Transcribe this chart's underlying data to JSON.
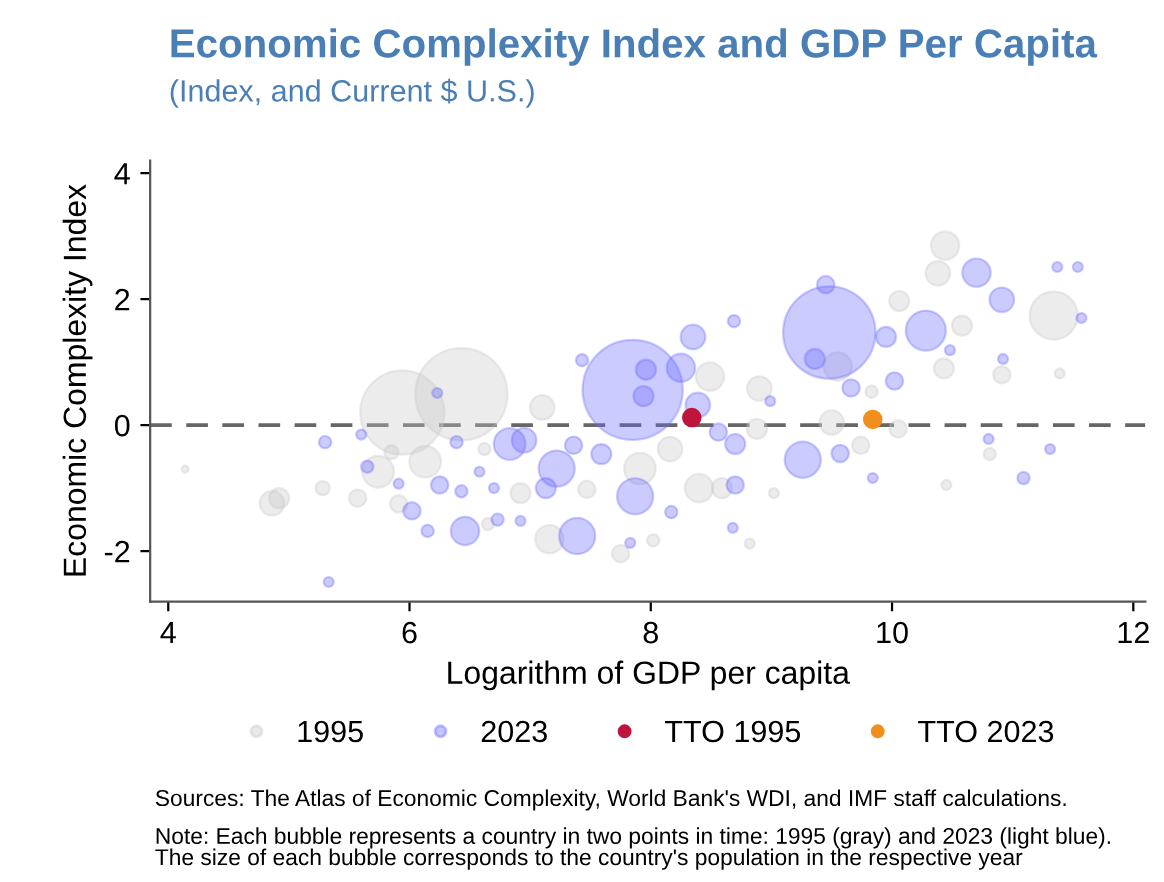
{
  "chart_data": {
    "type": "bubble",
    "title": "Economic Complexity Index and GDP Per Capita",
    "subtitle": "(Index, and Current $ U.S.)",
    "xlabel": "Logarithm of GDP per capita",
    "ylabel": "Economic Complexity Index",
    "xlim": [
      3.85,
      12.1
    ],
    "ylim": [
      -2.8,
      4.2
    ],
    "xticks": [
      4,
      6,
      8,
      10,
      12
    ],
    "yticks": [
      -2,
      0,
      2,
      4
    ],
    "grid": false,
    "legend": "bottom",
    "marker": "circle",
    "ref_lines": [
      {
        "axis": "y",
        "value": 0,
        "color": "#666666",
        "line_style": "dashed"
      }
    ],
    "series": [
      {
        "name": "1995",
        "color": "#c8c8c8",
        "x": [
          5.94,
          6.43,
          6.13,
          5.74,
          4.86,
          4.92,
          4.14,
          5.28,
          5.57,
          5.85,
          6.62,
          7.1,
          7.16,
          7.75,
          6.92,
          7.47,
          6.65,
          5.91,
          10.44,
          10.38,
          11.34,
          10.06,
          10.58,
          10.43,
          10.91,
          9.55,
          8.9,
          8.49,
          9.5,
          8.4,
          8.59,
          8.16,
          7.91,
          9.74,
          10.81,
          10.45,
          11.39,
          8.88,
          9.02,
          8.02,
          8.82,
          9.83,
          10.05
        ],
        "values": [
          0.2,
          0.49,
          -0.58,
          -0.74,
          -1.24,
          -1.16,
          -0.7,
          -1.0,
          -1.16,
          -0.43,
          -0.38,
          0.28,
          -1.81,
          -2.04,
          -1.08,
          -1.02,
          -1.57,
          -1.25,
          2.85,
          2.41,
          1.74,
          1.97,
          1.58,
          0.9,
          0.8,
          0.93,
          0.58,
          0.77,
          0.04,
          -1.0,
          -1.0,
          -0.38,
          -0.69,
          -0.32,
          -0.46,
          -0.95,
          0.82,
          -0.06,
          -1.08,
          -1.83,
          -1.88,
          0.53,
          -0.06
        ],
        "sizes": [
          0.71,
          0.85,
          0.1,
          0.1,
          0.06,
          0.04,
          0.005,
          0.02,
          0.03,
          0.02,
          0.015,
          0.06,
          0.08,
          0.03,
          0.04,
          0.03,
          0.015,
          0.03,
          0.08,
          0.06,
          0.23,
          0.04,
          0.04,
          0.04,
          0.03,
          0.08,
          0.06,
          0.08,
          0.06,
          0.08,
          0.04,
          0.06,
          0.1,
          0.03,
          0.015,
          0.01,
          0.01,
          0.04,
          0.01,
          0.015,
          0.01,
          0.015,
          0.03
        ]
      },
      {
        "name": "2023",
        "color": "#6b6bff",
        "x": [
          5.3,
          5.6,
          5.65,
          6.02,
          6.15,
          6.25,
          6.46,
          6.39,
          6.43,
          6.83,
          6.95,
          7.22,
          7.39,
          7.13,
          7.43,
          7.59,
          7.36,
          5.33,
          6.92,
          6.73,
          6.58,
          6.7,
          5.91,
          6.23,
          7.83,
          7.85,
          9.48,
          8.35,
          8.25,
          7.96,
          7.94,
          8.39,
          7.87,
          9.26,
          8.7,
          8.56,
          8.7,
          9.45,
          8.69,
          10.28,
          10.7,
          10.91,
          9.95,
          9.66,
          10.02,
          9.57,
          11.09,
          11.37,
          11.54,
          11.57,
          11.31,
          10.92,
          8.17,
          8.68,
          9.84,
          10.48,
          10.8,
          8.99,
          9.36
        ],
        "values": [
          -0.27,
          -0.15,
          -0.66,
          -1.36,
          -1.68,
          -0.95,
          -1.68,
          -0.27,
          -1.05,
          -0.3,
          -0.24,
          -0.69,
          -1.76,
          -1.0,
          1.03,
          -0.46,
          -0.32,
          -2.49,
          -1.52,
          -1.5,
          -0.74,
          -1.0,
          -0.93,
          0.51,
          -1.87,
          0.56,
          1.47,
          1.4,
          0.91,
          0.88,
          0.46,
          0.32,
          -1.13,
          -0.55,
          -0.3,
          -0.11,
          -0.95,
          2.23,
          1.65,
          1.5,
          2.42,
          1.99,
          1.4,
          0.59,
          0.7,
          -0.45,
          -0.84,
          2.51,
          2.51,
          1.7,
          -0.38,
          1.05,
          -1.38,
          -1.63,
          -0.84,
          1.19,
          -0.22,
          0.38,
          1.05
        ],
        "sizes": [
          0.015,
          0.01,
          0.015,
          0.03,
          0.015,
          0.03,
          0.08,
          0.015,
          0.015,
          0.1,
          0.06,
          0.13,
          0.13,
          0.04,
          0.015,
          0.04,
          0.03,
          0.01,
          0.01,
          0.015,
          0.01,
          0.01,
          0.01,
          0.01,
          0.01,
          1.0,
          0.85,
          0.06,
          0.08,
          0.04,
          0.04,
          0.06,
          0.13,
          0.13,
          0.04,
          0.03,
          0.03,
          0.03,
          0.015,
          0.16,
          0.08,
          0.06,
          0.04,
          0.03,
          0.03,
          0.03,
          0.015,
          0.01,
          0.01,
          0.01,
          0.01,
          0.01,
          0.015,
          0.01,
          0.01,
          0.01,
          0.01,
          0.01,
          0.04
        ]
      },
      {
        "name": "TTO 1995",
        "color": "#c0143c",
        "x": [
          8.34
        ],
        "values": [
          0.12
        ],
        "sizes": [
          0.03
        ]
      },
      {
        "name": "TTO 2023",
        "color": "#f28e1c",
        "x": [
          9.84
        ],
        "values": [
          0.09
        ],
        "sizes": [
          0.03
        ]
      }
    ],
    "annotations": [
      "Sources: The Atlas of Economic Complexity, World Bank's WDI, and IMF staff calculations.",
      "Note: Each bubble represents a country in two points in time: 1995 (gray) and 2023 (light blue).\nThe size of each bubble corresponds to the country's population in the respective year"
    ]
  }
}
